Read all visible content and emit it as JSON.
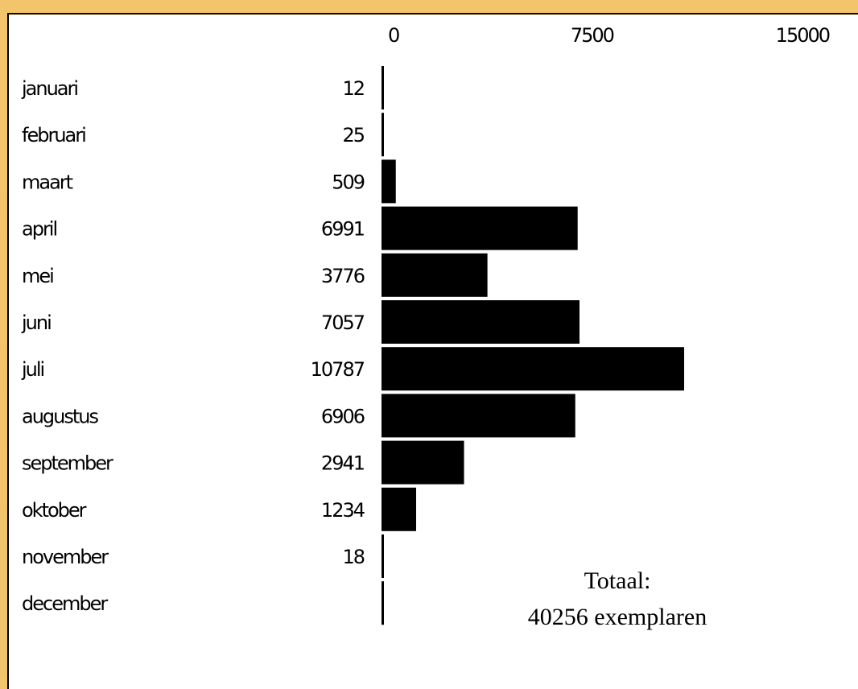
{
  "chart_data": {
    "type": "bar",
    "orientation": "horizontal",
    "categories": [
      "januari",
      "februari",
      "maart",
      "april",
      "mei",
      "juni",
      "juli",
      "augustus",
      "september",
      "oktober",
      "november",
      "december"
    ],
    "values": [
      12,
      25,
      509,
      6991,
      3776,
      7057,
      10787,
      6906,
      2941,
      1234,
      18,
      0
    ],
    "value_labels": [
      "12",
      "25",
      "509",
      "6991",
      "3776",
      "7057",
      "10787",
      "6906",
      "2941",
      "1234",
      "18",
      ""
    ],
    "xlim": [
      0,
      15000
    ],
    "ticks": [
      "0",
      "7500",
      "15000"
    ],
    "tick_values": [
      0,
      7500,
      15000
    ],
    "grid": false,
    "legend": "none",
    "bar_color": "#000000"
  },
  "total": {
    "line1": "Totaal:",
    "line2": "40256 exemplaren"
  },
  "colors": {
    "background": "#f2c56b",
    "panel": "#ffffff",
    "bar": "#000000"
  }
}
